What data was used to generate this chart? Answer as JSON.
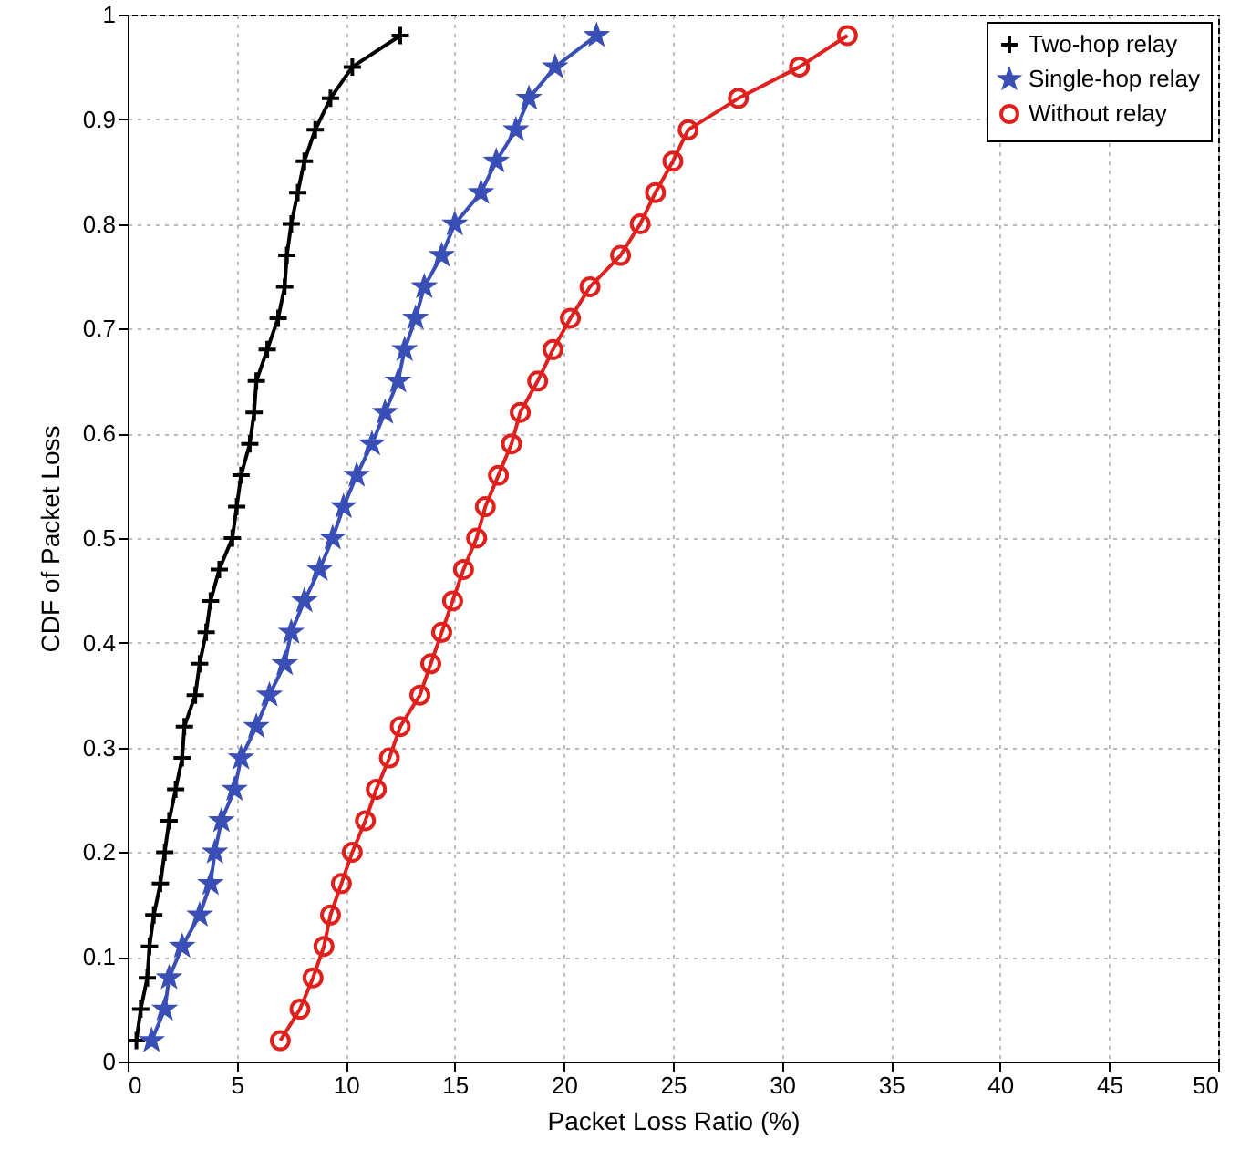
{
  "chart_data": {
    "type": "line",
    "xlabel": "Packet Loss Ratio (%)",
    "ylabel": "CDF of Packet Loss",
    "xlim": [
      0,
      50
    ],
    "xticks": [
      0,
      5,
      10,
      15,
      20,
      25,
      30,
      35,
      40,
      45,
      50
    ],
    "ylim": [
      0,
      1
    ],
    "yticks": [
      0,
      0.1,
      0.2,
      0.3,
      0.4,
      0.5,
      0.6,
      0.7,
      0.8,
      0.9,
      1
    ],
    "grid": true,
    "legend": "top right",
    "line_style": "solid",
    "series": [
      {
        "name": "Two-hop relay",
        "color": "#000000",
        "marker": "cross",
        "x": [
          0.4,
          0.6,
          0.9,
          1.0,
          1.2,
          1.5,
          1.7,
          1.9,
          2.2,
          2.5,
          2.6,
          3.1,
          3.3,
          3.6,
          3.8,
          4.2,
          4.8,
          5.0,
          5.2,
          5.6,
          5.8,
          5.9,
          6.4,
          6.9,
          7.2,
          7.3,
          7.5,
          7.8,
          8.1,
          8.6,
          9.3,
          10.3,
          12.5
        ],
        "values": [
          0.02,
          0.05,
          0.08,
          0.11,
          0.14,
          0.17,
          0.2,
          0.23,
          0.26,
          0.29,
          0.32,
          0.35,
          0.38,
          0.41,
          0.44,
          0.47,
          0.5,
          0.53,
          0.56,
          0.59,
          0.62,
          0.65,
          0.68,
          0.71,
          0.74,
          0.77,
          0.8,
          0.83,
          0.86,
          0.89,
          0.92,
          0.95,
          0.98
        ]
      },
      {
        "name": "Single-hop relay",
        "color": "#3a4fb5",
        "marker": "star",
        "x": [
          1.1,
          1.7,
          1.9,
          2.5,
          3.3,
          3.8,
          4.0,
          4.3,
          4.9,
          5.2,
          5.9,
          6.5,
          7.2,
          7.5,
          8.1,
          8.8,
          9.4,
          9.9,
          10.5,
          11.2,
          11.8,
          12.4,
          12.7,
          13.2,
          13.6,
          14.4,
          15.0,
          16.2,
          16.9,
          17.8,
          18.4,
          19.6,
          21.5
        ],
        "values": [
          0.02,
          0.05,
          0.08,
          0.11,
          0.14,
          0.17,
          0.2,
          0.23,
          0.26,
          0.29,
          0.32,
          0.35,
          0.38,
          0.41,
          0.44,
          0.47,
          0.5,
          0.53,
          0.56,
          0.59,
          0.62,
          0.65,
          0.68,
          0.71,
          0.74,
          0.77,
          0.8,
          0.83,
          0.86,
          0.89,
          0.92,
          0.95,
          0.98
        ]
      },
      {
        "name": "Without relay",
        "color": "#e0201c",
        "marker": "circle",
        "x": [
          7.0,
          7.9,
          8.5,
          9.0,
          9.3,
          9.8,
          10.3,
          10.9,
          11.4,
          12.0,
          12.5,
          13.4,
          13.9,
          14.4,
          14.9,
          15.4,
          16.0,
          16.4,
          17.0,
          17.6,
          18.0,
          18.8,
          19.5,
          20.3,
          21.2,
          22.6,
          23.5,
          24.2,
          25.0,
          25.7,
          28.0,
          30.8,
          33.0
        ],
        "values": [
          0.02,
          0.05,
          0.08,
          0.11,
          0.14,
          0.17,
          0.2,
          0.23,
          0.26,
          0.29,
          0.32,
          0.35,
          0.38,
          0.41,
          0.44,
          0.47,
          0.5,
          0.53,
          0.56,
          0.59,
          0.62,
          0.65,
          0.68,
          0.71,
          0.74,
          0.77,
          0.8,
          0.83,
          0.86,
          0.89,
          0.92,
          0.95,
          0.98
        ]
      }
    ]
  }
}
